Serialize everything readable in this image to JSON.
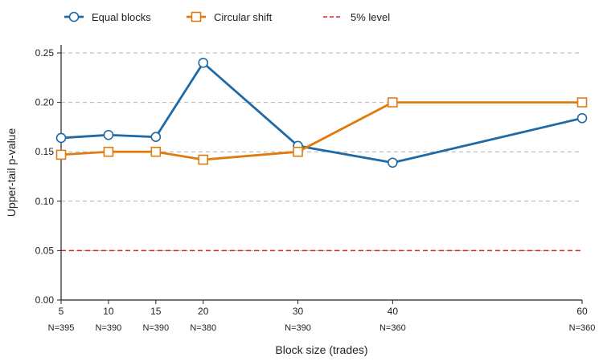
{
  "chart_data": {
    "type": "line",
    "xlabel": "Block size (trades)",
    "ylabel": "Upper-tail p-value",
    "x": [
      5,
      10,
      15,
      20,
      30,
      40,
      60
    ],
    "x_tick_labels": [
      "5",
      "10",
      "15",
      "20",
      "30",
      "40",
      "60"
    ],
    "x_sub_labels": [
      "N=395",
      "N=390",
      "N=390",
      "N=380",
      "N=390",
      "N=360",
      "N=360"
    ],
    "xlim": [
      5,
      60
    ],
    "ylim": [
      0,
      0.25
    ],
    "y_ticks": [
      0.0,
      0.05,
      0.1,
      0.15,
      0.2,
      0.25
    ],
    "y_tick_labels": [
      "0.00",
      "0.05",
      "0.10",
      "0.15",
      "0.20",
      "0.25"
    ],
    "grid": "horizontal dashed",
    "legend_position": "top",
    "series": [
      {
        "name": "Equal blocks",
        "values": [
          0.164,
          0.167,
          0.165,
          0.24,
          0.156,
          0.139,
          0.184
        ],
        "color": "#1f6aa5",
        "marker": "circle"
      },
      {
        "name": "Circular shift",
        "values": [
          0.147,
          0.15,
          0.15,
          0.142,
          0.15,
          0.2,
          0.2
        ],
        "color": "#e07b10",
        "marker": "square"
      }
    ],
    "reference_lines": [
      {
        "name": "5% level",
        "value": 0.05,
        "color": "#d62728",
        "style": "dashed"
      }
    ]
  }
}
